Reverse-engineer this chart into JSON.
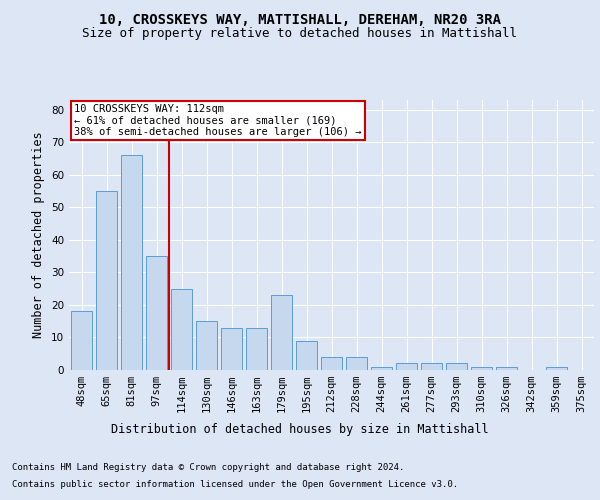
{
  "title": "10, CROSSKEYS WAY, MATTISHALL, DEREHAM, NR20 3RA",
  "subtitle": "Size of property relative to detached houses in Mattishall",
  "xlabel": "Distribution of detached houses by size in Mattishall",
  "ylabel": "Number of detached properties",
  "categories": [
    "48sqm",
    "65sqm",
    "81sqm",
    "97sqm",
    "114sqm",
    "130sqm",
    "146sqm",
    "163sqm",
    "179sqm",
    "195sqm",
    "212sqm",
    "228sqm",
    "244sqm",
    "261sqm",
    "277sqm",
    "293sqm",
    "310sqm",
    "326sqm",
    "342sqm",
    "359sqm",
    "375sqm"
  ],
  "values": [
    18,
    55,
    66,
    35,
    25,
    15,
    13,
    13,
    23,
    9,
    4,
    4,
    1,
    2,
    2,
    2,
    1,
    1,
    0,
    1,
    0
  ],
  "bar_color": "#c5d8ed",
  "bar_edge_color": "#5b9bd5",
  "background_color": "#dce6f5",
  "plot_bg_color": "#dce6f5",
  "grid_color": "#ffffff",
  "vline_x": 3.5,
  "vline_color": "#cc0000",
  "annotation_box_text": "10 CROSSKEYS WAY: 112sqm\n← 61% of detached houses are smaller (169)\n38% of semi-detached houses are larger (106) →",
  "annotation_box_edge_color": "#cc0000",
  "ylim": [
    0,
    83
  ],
  "yticks": [
    0,
    10,
    20,
    30,
    40,
    50,
    60,
    70,
    80
  ],
  "footer_line1": "Contains HM Land Registry data © Crown copyright and database right 2024.",
  "footer_line2": "Contains public sector information licensed under the Open Government Licence v3.0.",
  "title_fontsize": 10,
  "subtitle_fontsize": 9,
  "axis_label_fontsize": 8.5,
  "tick_fontsize": 7.5,
  "annotation_fontsize": 7.5,
  "footer_fontsize": 6.5
}
